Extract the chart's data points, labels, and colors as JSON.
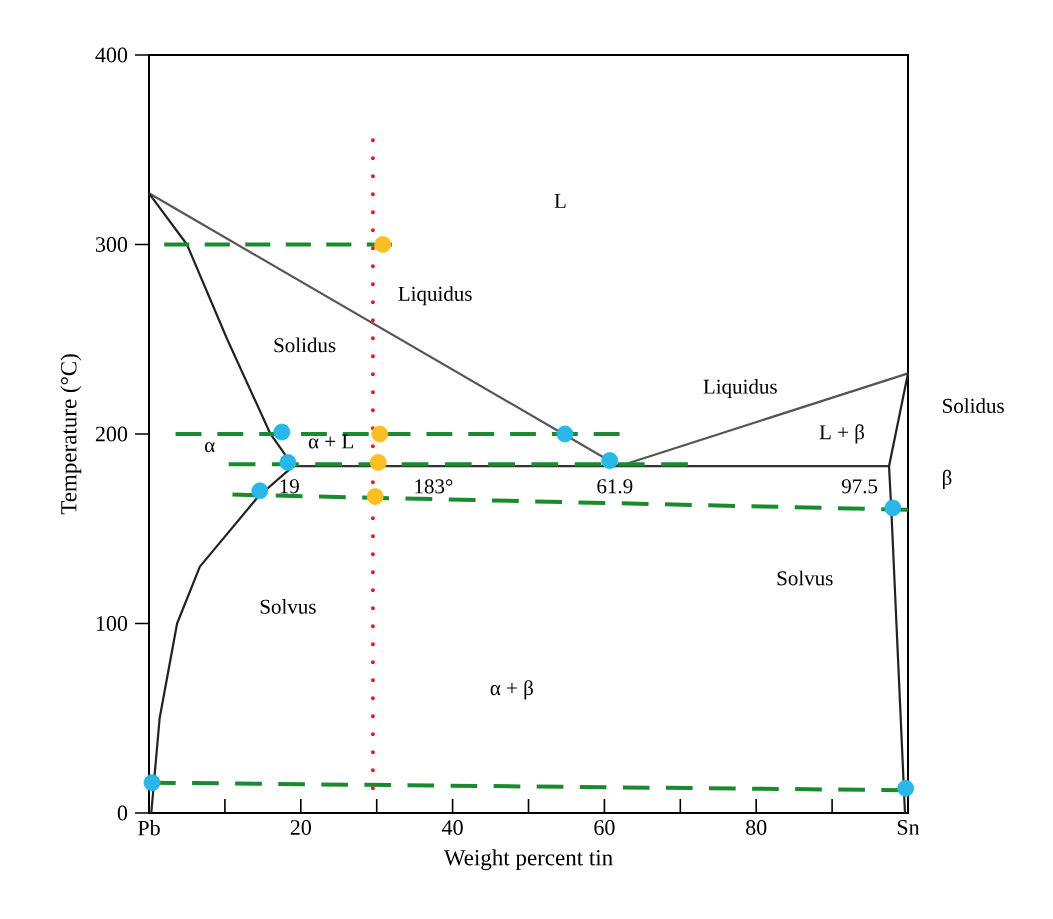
{
  "chart_data": {
    "type": "line",
    "xlabel": "Weight percent tin",
    "ylabel": "Temperature (°C)",
    "xlim": [
      0,
      100
    ],
    "ylim": [
      0,
      400
    ],
    "xticks": [
      {
        "value": 0,
        "label": "Pb"
      },
      {
        "value": 10,
        "label": null
      },
      20,
      {
        "value": 30,
        "label": null
      },
      40,
      {
        "value": 50,
        "label": null
      },
      60,
      {
        "value": 70,
        "label": null
      },
      80,
      {
        "value": 90,
        "label": null
      },
      {
        "value": 100,
        "label": "Sn"
      }
    ],
    "yticks": [
      0,
      100,
      200,
      300,
      400
    ],
    "series": [
      {
        "color": "#555555",
        "line_style": "solid",
        "marker": "none",
        "x": [
          0,
          61.9
        ],
        "values": [
          327,
          183
        ]
      },
      {
        "color": "#555555",
        "line_style": "solid",
        "marker": "none",
        "x": [
          61.9,
          100
        ],
        "values": [
          183,
          232
        ]
      },
      {
        "color": "#222222",
        "line_style": "solid",
        "marker": "none",
        "x": [
          0,
          5,
          10.3,
          16,
          19
        ],
        "values": [
          327,
          300,
          250,
          200,
          183
        ]
      },
      {
        "color": "#222222",
        "line_style": "solid",
        "marker": "none",
        "x": [
          19,
          14.4,
          6.7,
          3.7,
          1.4,
          0.3
        ],
        "values": [
          183,
          167,
          130,
          100,
          50,
          0
        ]
      },
      {
        "color": "#333333",
        "line_style": "solid",
        "marker": "none",
        "x": [
          19,
          97.5
        ],
        "values": [
          183,
          183
        ]
      },
      {
        "color": "#222222",
        "line_style": "solid",
        "marker": "none",
        "x": [
          100,
          97.5,
          97.8,
          99.6
        ],
        "values": [
          232,
          183,
          160,
          0
        ]
      },
      {
        "color": "#1a8a2e",
        "line_style": "dashed",
        "marker": "none",
        "x": [
          2,
          32
        ],
        "values": [
          300,
          300
        ]
      },
      {
        "color": "#1a8a2e",
        "line_style": "dashed",
        "marker": "none",
        "x": [
          3.5,
          62
        ],
        "values": [
          200,
          200
        ]
      },
      {
        "color": "#1a8a2e",
        "line_style": "dashed",
        "marker": "none",
        "x": [
          10.5,
          71
        ],
        "values": [
          184,
          184
        ]
      },
      {
        "color": "#1a8a2e",
        "line_style": "dashed",
        "marker": "none",
        "x": [
          11,
          100
        ],
        "values": [
          168,
          160
        ]
      },
      {
        "color": "#1a8a2e",
        "line_style": "dashed",
        "marker": "none",
        "x": [
          0,
          100
        ],
        "values": [
          16,
          12
        ]
      },
      {
        "color": "#e02020",
        "line_style": "dotted",
        "marker": "none",
        "x": [
          29.5,
          29.5
        ],
        "values": [
          13,
          357
        ]
      },
      {
        "type": "scatter",
        "color": "#fbbf24",
        "marker": "circle",
        "x": [
          30.8,
          30.4,
          30.2,
          29.8
        ],
        "values": [
          300,
          200,
          185,
          167
        ]
      },
      {
        "type": "scatter",
        "color": "#29b6e8",
        "marker": "circle",
        "x": [
          17.5,
          18.3,
          14.6,
          0.4,
          54.8,
          60.7,
          98,
          99.7
        ],
        "values": [
          201,
          185,
          170,
          16,
          200,
          186,
          161,
          13
        ]
      }
    ],
    "annotations": [
      "L",
      "Liquidus",
      "Solidus",
      "α + L",
      "α",
      {
        "text": "19",
        "x": 19,
        "y": 183
      },
      {
        "text": "183°",
        "x": 38,
        "y": 183
      },
      {
        "text": "61.9",
        "x": 61.9,
        "y": 183
      },
      "Liquidus",
      "L + β",
      {
        "text": "97.5",
        "x": 97.5,
        "y": 183
      },
      "Solidus",
      "β",
      "Solvus",
      "Solvus",
      "α + β"
    ]
  }
}
